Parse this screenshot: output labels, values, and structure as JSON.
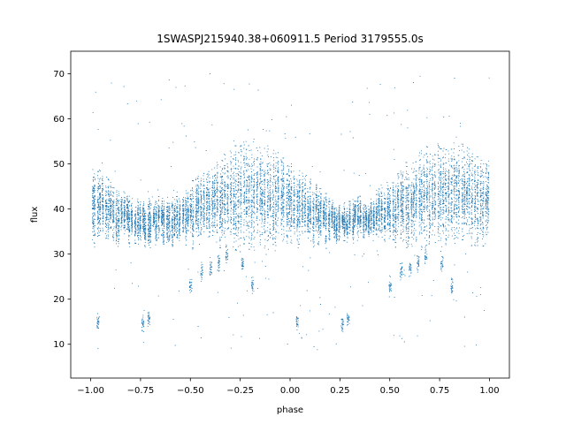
{
  "chart_data": {
    "type": "scatter",
    "title": "1SWASPJ215940.38+060911.5 Period 3179555.0s",
    "xlabel": "phase",
    "ylabel": "flux",
    "xlim": [
      -1.1,
      1.1
    ],
    "ylim": [
      2.5,
      75
    ],
    "xticks": [
      -1.0,
      -0.75,
      -0.5,
      -0.25,
      0.0,
      0.25,
      0.5,
      0.75,
      1.0
    ],
    "xtick_labels": [
      "−1.00",
      "−0.75",
      "−0.50",
      "−0.25",
      "0.00",
      "0.25",
      "0.50",
      "0.75",
      "1.00"
    ],
    "yticks": [
      10,
      20,
      30,
      40,
      50,
      60,
      70
    ],
    "ytick_labels": [
      "10",
      "20",
      "30",
      "40",
      "50",
      "60",
      "70"
    ],
    "grid": false,
    "legend": false,
    "marker_color": "#1f77b4",
    "series": [
      {
        "phase_range": [
          -1.0,
          1.0
        ],
        "core_flux_range": [
          30,
          55
        ],
        "dips": [
          {
            "phase": -0.965,
            "flux": 15
          },
          {
            "phase": -0.74,
            "flux": 14.5
          },
          {
            "phase": -0.71,
            "flux": 15.5
          },
          {
            "phase": -0.5,
            "flux": 23
          },
          {
            "phase": -0.445,
            "flux": 26
          },
          {
            "phase": -0.4,
            "flux": 27
          },
          {
            "phase": -0.36,
            "flux": 28
          },
          {
            "phase": -0.32,
            "flux": 30
          },
          {
            "phase": -0.24,
            "flux": 28
          },
          {
            "phase": -0.19,
            "flux": 23
          },
          {
            "phase": 0.035,
            "flux": 15
          },
          {
            "phase": 0.26,
            "flux": 14.5
          },
          {
            "phase": 0.29,
            "flux": 15.5
          },
          {
            "phase": 0.5,
            "flux": 23
          },
          {
            "phase": 0.555,
            "flux": 26
          },
          {
            "phase": 0.6,
            "flux": 27
          },
          {
            "phase": 0.64,
            "flux": 28
          },
          {
            "phase": 0.68,
            "flux": 30
          },
          {
            "phase": 0.76,
            "flux": 28
          },
          {
            "phase": 0.81,
            "flux": 23
          }
        ]
      }
    ]
  }
}
